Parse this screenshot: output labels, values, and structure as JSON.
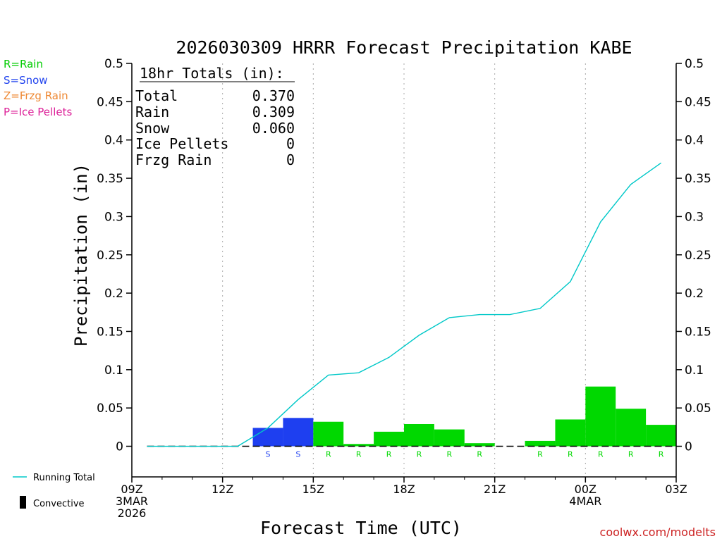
{
  "chart_data": {
    "type": "bar",
    "title": "2026030309 HRRR Forecast Precipitation KABE",
    "xlabel": "Forecast Time (UTC)",
    "ylabel": "Precipitation (in)",
    "ylim": [
      -0.04,
      0.5
    ],
    "yticks": [
      "0",
      "0.05",
      "0.1",
      "0.15",
      "0.2",
      "0.25",
      "0.3",
      "0.35",
      "0.4",
      "0.45",
      "0.5"
    ],
    "ytick_values": [
      0,
      0.05,
      0.1,
      0.15,
      0.2,
      0.25,
      0.3,
      0.35,
      0.4,
      0.45,
      0.5
    ],
    "xlim_hours": [
      9,
      27
    ],
    "xticks": [
      {
        "hour": 9,
        "lines": [
          "09Z",
          "3MAR",
          "2026"
        ]
      },
      {
        "hour": 12,
        "lines": [
          "12Z"
        ]
      },
      {
        "hour": 15,
        "lines": [
          "15Z"
        ]
      },
      {
        "hour": 18,
        "lines": [
          "18Z"
        ]
      },
      {
        "hour": 21,
        "lines": [
          "21Z"
        ]
      },
      {
        "hour": 24,
        "lines": [
          "00Z",
          "4MAR"
        ]
      },
      {
        "hour": 27,
        "lines": [
          "03Z"
        ]
      }
    ],
    "gridlines_x_hours": [
      12,
      15,
      18,
      21,
      24
    ],
    "bars": [
      {
        "hour": 10,
        "value": 0.0,
        "type": ""
      },
      {
        "hour": 11,
        "value": 0.0,
        "type": ""
      },
      {
        "hour": 12,
        "value": 0.0,
        "type": ""
      },
      {
        "hour": 13,
        "value": 0.0,
        "type": ""
      },
      {
        "hour": 14,
        "value": 0.024,
        "type": "S"
      },
      {
        "hour": 15,
        "value": 0.037,
        "type": "S"
      },
      {
        "hour": 16,
        "value": 0.032,
        "type": "R"
      },
      {
        "hour": 17,
        "value": 0.003,
        "type": "R"
      },
      {
        "hour": 18,
        "value": 0.019,
        "type": "R"
      },
      {
        "hour": 19,
        "value": 0.029,
        "type": "R"
      },
      {
        "hour": 20,
        "value": 0.022,
        "type": "R"
      },
      {
        "hour": 21,
        "value": 0.004,
        "type": "R"
      },
      {
        "hour": 22,
        "value": 0.0,
        "type": ""
      },
      {
        "hour": 23,
        "value": 0.007,
        "type": "R"
      },
      {
        "hour": 24,
        "value": 0.035,
        "type": "R"
      },
      {
        "hour": 25,
        "value": 0.078,
        "type": "R"
      },
      {
        "hour": 26,
        "value": 0.049,
        "type": "R"
      },
      {
        "hour": 27,
        "value": 0.028,
        "type": "R"
      }
    ],
    "running_total": [
      {
        "hour": 10,
        "value": 0.0
      },
      {
        "hour": 11,
        "value": 0.0
      },
      {
        "hour": 12,
        "value": 0.0
      },
      {
        "hour": 13,
        "value": 0.0
      },
      {
        "hour": 14,
        "value": 0.024
      },
      {
        "hour": 15,
        "value": 0.061
      },
      {
        "hour": 16,
        "value": 0.093
      },
      {
        "hour": 17,
        "value": 0.096
      },
      {
        "hour": 18,
        "value": 0.116
      },
      {
        "hour": 19,
        "value": 0.145
      },
      {
        "hour": 20,
        "value": 0.168
      },
      {
        "hour": 21,
        "value": 0.172
      },
      {
        "hour": 22,
        "value": 0.172
      },
      {
        "hour": 23,
        "value": 0.18
      },
      {
        "hour": 24,
        "value": 0.215
      },
      {
        "hour": 25,
        "value": 0.293
      },
      {
        "hour": 26,
        "value": 0.342
      },
      {
        "hour": 27,
        "value": 0.37
      }
    ],
    "totals_box": {
      "heading": "18hr Totals (in):",
      "rows": [
        {
          "label": "Total",
          "value": "0.370"
        },
        {
          "label": "Rain",
          "value": "0.309"
        },
        {
          "label": "Snow",
          "value": "0.060"
        },
        {
          "label": "Ice Pellets",
          "value": "0"
        },
        {
          "label": "Frzg Rain",
          "value": "0"
        }
      ]
    },
    "type_legend": [
      {
        "text": "R=Rain",
        "color": "#00cc00"
      },
      {
        "text": "S=Snow",
        "color": "#2244ee"
      },
      {
        "text": "Z=Frzg Rain",
        "color": "#ee8833"
      },
      {
        "text": "P=Ice Pellets",
        "color": "#dd2299"
      }
    ],
    "line_legend": [
      {
        "text": "Running Total",
        "kind": "line",
        "color": "#00c8c8"
      },
      {
        "text": "Convective",
        "kind": "bar",
        "color": "#000000"
      }
    ],
    "colors": {
      "R": "#00d800",
      "S": "#1e3ff0",
      "running_total": "#00c8c8"
    },
    "credit": "coolwx.com/modelts",
    "credit_color": "#cc2222",
    "grid": true
  }
}
